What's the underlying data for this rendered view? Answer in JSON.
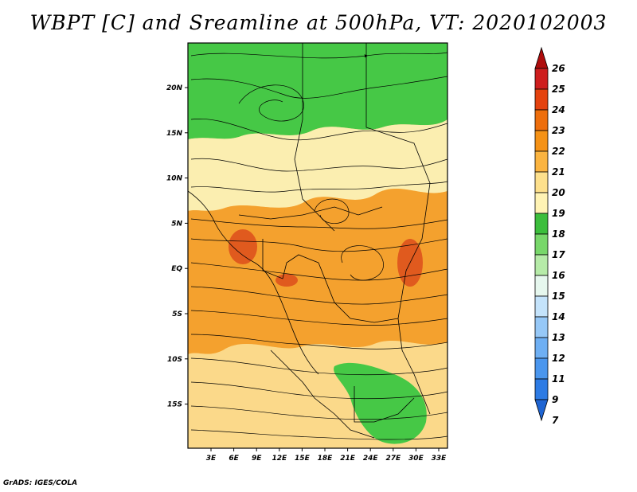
{
  "title": "WBPT [C] and Sreamline at 500hPa, VT: 2020102003",
  "footer": "GrADS: IGES/COLA",
  "lat_labels": [
    "20N",
    "15N",
    "10N",
    "5N",
    "EQ",
    "5S",
    "10S",
    "15S"
  ],
  "lon_labels": [
    "3E",
    "6E",
    "9E",
    "12E",
    "15E",
    "18E",
    "21E",
    "24E",
    "27E",
    "30E",
    "33E"
  ],
  "colorbar": {
    "levels": [
      "7",
      "9",
      "11",
      "12",
      "13",
      "14",
      "15",
      "16",
      "17",
      "18",
      "19",
      "20",
      "21",
      "22",
      "23",
      "24",
      "25",
      "26"
    ],
    "colors": [
      "#1e64d2",
      "#2d7be4",
      "#4a96ee",
      "#6eaff3",
      "#96c8f7",
      "#c4e3fb",
      "#e6f7ee",
      "#b6eba8",
      "#78d76a",
      "#3cbe3c",
      "#fff3b4",
      "#fde08c",
      "#fbb440",
      "#f59216",
      "#ee6e0c",
      "#e4420e",
      "#ce1e1e",
      "#ae0c0c"
    ]
  },
  "legend_colors": {
    "green_17_18": "#46c846",
    "yellow_19": "#fbeeb0",
    "orange_21": "#f9ad3c",
    "orange_22": "#f08d1e",
    "red_23": "#e05a1e"
  }
}
